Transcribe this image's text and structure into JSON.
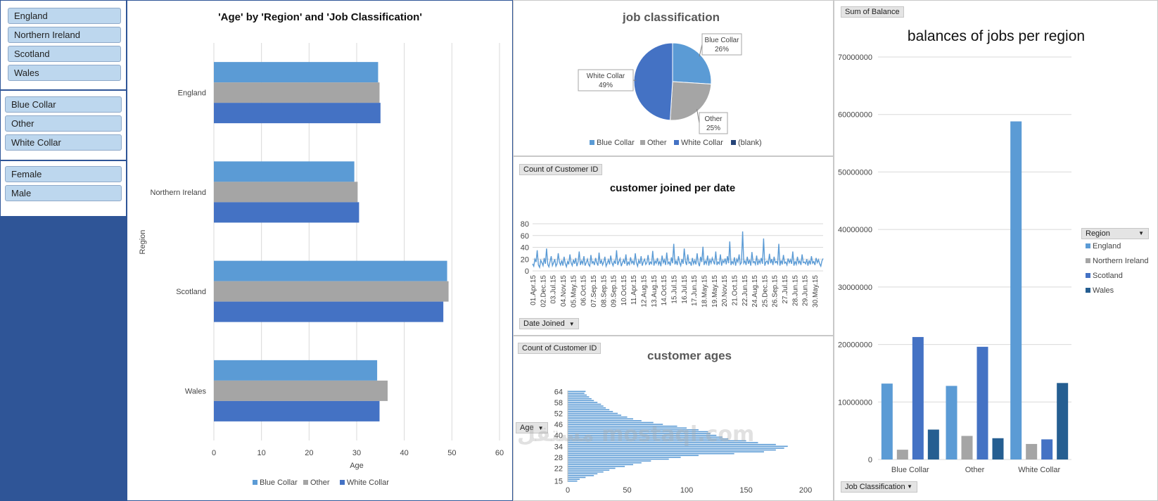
{
  "slicers": {
    "region": [
      "England",
      "Northern Ireland",
      "Scotland",
      "Wales"
    ],
    "job": [
      "Blue Collar",
      "Other",
      "White Collar"
    ],
    "gender": [
      "Female",
      "Male"
    ]
  },
  "colors": {
    "blue_collar": "#5b9bd5",
    "other": "#a5a5a5",
    "white_collar": "#4472c4",
    "wales": "#255e91",
    "blank": "#264478",
    "slicer": "#bdd7ee",
    "navy": "#2f5597"
  },
  "field_buttons": {
    "sum_balance": "Sum of Balance",
    "count_customer_1": "Count of Customer ID",
    "date_joined": "Date Joined",
    "count_customer_2": "Count of Customer ID",
    "age": "Age",
    "region": "Region",
    "job_classification": "Job Classification"
  },
  "watermark": "مستقل mostaql.com",
  "chart_data": [
    {
      "id": "age_region",
      "type": "bar",
      "orientation": "horizontal",
      "title": "'Age' by 'Region' and 'Job Classification'",
      "xlabel": "Age",
      "ylabel": "Region",
      "categories": [
        "England",
        "Northern Ireland",
        "Scotland",
        "Wales"
      ],
      "series": [
        {
          "name": "Blue Collar",
          "values": [
            34.5,
            29.5,
            49.0,
            34.3
          ]
        },
        {
          "name": "Other",
          "values": [
            34.8,
            30.2,
            49.3,
            36.5
          ]
        },
        {
          "name": "White Collar",
          "values": [
            35.0,
            30.5,
            48.2,
            34.8
          ]
        }
      ],
      "xlim": [
        0,
        60
      ],
      "xticks": [
        "0",
        "10",
        "20",
        "30",
        "40",
        "50",
        "60"
      ],
      "grid": true,
      "legend": "bottom"
    },
    {
      "id": "job_pie",
      "type": "pie",
      "title": "job classification",
      "slices": [
        {
          "name": "Blue Collar",
          "value": 26,
          "label": "26%"
        },
        {
          "name": "Other",
          "value": 25,
          "label": "25%"
        },
        {
          "name": "White Collar",
          "value": 49,
          "label": "49%"
        }
      ],
      "legend_items": [
        "Blue Collar",
        "Other",
        "White Collar",
        "(blank)"
      ],
      "legend": "bottom"
    },
    {
      "id": "joined_line",
      "type": "line",
      "title": "customer joined per date",
      "x_ticks": [
        "01.Apr.15",
        "02.Dec.15",
        "03.Jul.15",
        "04.Nov.15",
        "05.May.15",
        "06.Oct.15",
        "07.Sep.15",
        "08.Sep.15",
        "09.Sep.15",
        "10.Oct.15",
        "11.Apr.15",
        "12.Aug.15",
        "13.Aug.15",
        "14.Oct.15",
        "15.Jul.15",
        "16.Jul.15",
        "17.Jun.15",
        "18.May.15",
        "19.May.15",
        "20.Nov.15",
        "21.Oct.15",
        "22.Jun.15",
        "24.Aug.15",
        "25.Dec.15",
        "26.Sep.15",
        "27.Jul.15",
        "28.Jun.15",
        "29.Jun.15",
        "30.May.15"
      ],
      "values": [
        12,
        8,
        20,
        15,
        35,
        10,
        6,
        18,
        14,
        9,
        22,
        12,
        38,
        11,
        7,
        16,
        25,
        9,
        14,
        20,
        8,
        12,
        30,
        15,
        10,
        18,
        9,
        24,
        13,
        7,
        16,
        11,
        28,
        14,
        9,
        19,
        12,
        22,
        8,
        15,
        33,
        10,
        17,
        12,
        25,
        9,
        14,
        20,
        11,
        8,
        27,
        13,
        16,
        10,
        22,
        14,
        9,
        31,
        12,
        18,
        10,
        15,
        24,
        8,
        13,
        19,
        11,
        26,
        14,
        9,
        17,
        12,
        35,
        10,
        16,
        21,
        8,
        14,
        19,
        12,
        28,
        9,
        15,
        11,
        23,
        13,
        17,
        10,
        30,
        14,
        8,
        18,
        12,
        25,
        9,
        16,
        20,
        11,
        14,
        27,
        10,
        15,
        12,
        34,
        9,
        17,
        13,
        22,
        11,
        16,
        8,
        26,
        14,
        19,
        10,
        31,
        12,
        15,
        9,
        23,
        13,
        46,
        11,
        17,
        10,
        25,
        14,
        9,
        20,
        12,
        38,
        16,
        10,
        28,
        13,
        15,
        9,
        22,
        12,
        18,
        11,
        30,
        14,
        8,
        24,
        15,
        41,
        10,
        17,
        12,
        26,
        9,
        19,
        13,
        22,
        16,
        11,
        33,
        10,
        15,
        12,
        28,
        9,
        18,
        14,
        21,
        11,
        25,
        13,
        50,
        10,
        16,
        12,
        23,
        9,
        20,
        15,
        28,
        11,
        14,
        67,
        13,
        17,
        10,
        24,
        12,
        19,
        9,
        32,
        14,
        16,
        11,
        26,
        10,
        18,
        13,
        22,
        12,
        55,
        9,
        15,
        17,
        11,
        29,
        13,
        20,
        10,
        24,
        14,
        16,
        12,
        46,
        9,
        18,
        11,
        27,
        13,
        15,
        10,
        21,
        14,
        19,
        12,
        33,
        9,
        16,
        11,
        24,
        13,
        17,
        10,
        28,
        14,
        15,
        12,
        20,
        9,
        18,
        11,
        25,
        13,
        16,
        10,
        22,
        14,
        19,
        12,
        8,
        17,
        21
      ],
      "ylim": [
        0,
        80
      ],
      "yticks": [
        "0",
        "20",
        "40",
        "60",
        "80"
      ],
      "grid": true
    },
    {
      "id": "ages_hist",
      "type": "bar",
      "orientation": "horizontal",
      "title": "customer ages",
      "categories_shown": [
        "15",
        "22",
        "28",
        "34",
        "40",
        "46",
        "52",
        "58",
        "64"
      ],
      "ages": [
        15,
        16,
        17,
        18,
        19,
        20,
        21,
        22,
        23,
        24,
        25,
        26,
        27,
        28,
        29,
        30,
        31,
        32,
        33,
        34,
        35,
        36,
        37,
        38,
        39,
        40,
        41,
        42,
        43,
        44,
        45,
        46,
        47,
        48,
        49,
        50,
        51,
        52,
        53,
        54,
        55,
        56,
        57,
        58,
        59,
        60,
        61,
        62,
        63,
        64
      ],
      "values": [
        8,
        10,
        15,
        22,
        25,
        30,
        35,
        40,
        48,
        55,
        62,
        70,
        85,
        95,
        110,
        140,
        165,
        175,
        182,
        185,
        175,
        160,
        150,
        135,
        130,
        125,
        120,
        118,
        110,
        100,
        92,
        80,
        72,
        62,
        55,
        50,
        45,
        42,
        38,
        35,
        32,
        30,
        28,
        25,
        22,
        20,
        18,
        16,
        14,
        15
      ],
      "xlim": [
        0,
        210
      ],
      "xticks": [
        "0",
        "50",
        "100",
        "150",
        "200"
      ],
      "grid": false
    },
    {
      "id": "balances",
      "type": "bar",
      "title": "balances of jobs per region",
      "categories": [
        "Blue Collar",
        "Other",
        "White Collar"
      ],
      "series": [
        {
          "name": "England",
          "values": [
            13200000,
            12800000,
            58800000
          ]
        },
        {
          "name": "Northern Ireland",
          "values": [
            1700000,
            4100000,
            2700000
          ]
        },
        {
          "name": "Scotland",
          "values": [
            21300000,
            19600000,
            3500000
          ]
        },
        {
          "name": "Wales",
          "values": [
            5200000,
            3700000,
            13300000
          ]
        }
      ],
      "ylim": [
        0,
        70000000
      ],
      "yticks": [
        "0",
        "10000000",
        "20000000",
        "30000000",
        "40000000",
        "50000000",
        "60000000",
        "70000000"
      ],
      "grid": true,
      "legend": "right",
      "legend_title": "Region"
    }
  ]
}
